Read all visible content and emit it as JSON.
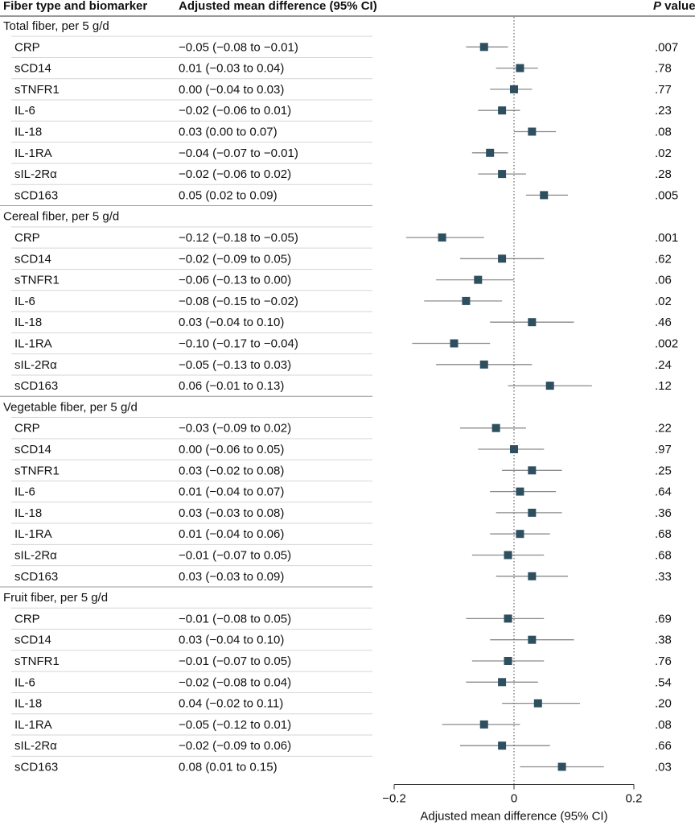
{
  "chart_data": {
    "type": "forest",
    "headers": {
      "group_col": "Fiber type and biomarker",
      "estimate_col": "Adjusted mean difference (95% CI)",
      "p_col_italic": "P",
      "p_col_rest": " value"
    },
    "xlabel": "Adjusted mean difference (95% CI)",
    "xlim": [
      -0.2,
      0.2
    ],
    "xticks": [
      -0.2,
      0,
      0.2
    ],
    "xtick_labels": [
      "-0.2",
      "0",
      "0.2"
    ],
    "reference_line": 0,
    "marker_color": "#2e4f5f",
    "line_color": "#8a8a8a",
    "groups": [
      {
        "label": "Total fiber, per 5 g/d",
        "rows": [
          {
            "biomarker": "CRP",
            "estimate": -0.05,
            "lo": -0.08,
            "hi": -0.01,
            "ci_text": "-0.05 (-0.08 to -0.01)",
            "p": ".007"
          },
          {
            "biomarker": "sCD14",
            "estimate": 0.01,
            "lo": -0.03,
            "hi": 0.04,
            "ci_text": "0.01 (-0.03 to 0.04)",
            "p": ".78"
          },
          {
            "biomarker": "sTNFR1",
            "estimate": 0.0,
            "lo": -0.04,
            "hi": 0.03,
            "ci_text": "0.00 (-0.04 to 0.03)",
            "p": ".77"
          },
          {
            "biomarker": "IL-6",
            "estimate": -0.02,
            "lo": -0.06,
            "hi": 0.01,
            "ci_text": "-0.02 (-0.06 to 0.01)",
            "p": ".23"
          },
          {
            "biomarker": "IL-18",
            "estimate": 0.03,
            "lo": 0.0,
            "hi": 0.07,
            "ci_text": "0.03 (0.00 to 0.07)",
            "p": ".08"
          },
          {
            "biomarker": "IL-1RA",
            "estimate": -0.04,
            "lo": -0.07,
            "hi": -0.01,
            "ci_text": "-0.04 (-0.07 to -0.01)",
            "p": ".02"
          },
          {
            "biomarker": "sIL-2Rα",
            "estimate": -0.02,
            "lo": -0.06,
            "hi": 0.02,
            "ci_text": "-0.02 (-0.06 to 0.02)",
            "p": ".28"
          },
          {
            "biomarker": "sCD163",
            "estimate": 0.05,
            "lo": 0.02,
            "hi": 0.09,
            "ci_text": "0.05 (0.02 to 0.09)",
            "p": ".005"
          }
        ]
      },
      {
        "label": "Cereal fiber, per 5 g/d",
        "rows": [
          {
            "biomarker": "CRP",
            "estimate": -0.12,
            "lo": -0.18,
            "hi": -0.05,
            "ci_text": "-0.12 (-0.18 to -0.05)",
            "p": ".001"
          },
          {
            "biomarker": "sCD14",
            "estimate": -0.02,
            "lo": -0.09,
            "hi": 0.05,
            "ci_text": "-0.02 (-0.09 to 0.05)",
            "p": ".62"
          },
          {
            "biomarker": "sTNFR1",
            "estimate": -0.06,
            "lo": -0.13,
            "hi": 0.0,
            "ci_text": "-0.06 (-0.13 to 0.00)",
            "p": ".06"
          },
          {
            "biomarker": "IL-6",
            "estimate": -0.08,
            "lo": -0.15,
            "hi": -0.02,
            "ci_text": "-0.08 (-0.15 to -0.02)",
            "p": ".02"
          },
          {
            "biomarker": "IL-18",
            "estimate": 0.03,
            "lo": -0.04,
            "hi": 0.1,
            "ci_text": "0.03 (-0.04 to 0.10)",
            "p": ".46"
          },
          {
            "biomarker": "IL-1RA",
            "estimate": -0.1,
            "lo": -0.17,
            "hi": -0.04,
            "ci_text": "-0.10 (-0.17 to -0.04)",
            "p": ".002"
          },
          {
            "biomarker": "sIL-2Rα",
            "estimate": -0.05,
            "lo": -0.13,
            "hi": 0.03,
            "ci_text": "-0.05 (-0.13 to 0.03)",
            "p": ".24"
          },
          {
            "biomarker": "sCD163",
            "estimate": 0.06,
            "lo": -0.01,
            "hi": 0.13,
            "ci_text": "0.06 (-0.01 to 0.13)",
            "p": ".12"
          }
        ]
      },
      {
        "label": "Vegetable fiber, per 5 g/d",
        "rows": [
          {
            "biomarker": "CRP",
            "estimate": -0.03,
            "lo": -0.09,
            "hi": 0.02,
            "ci_text": "-0.03 (-0.09 to 0.02)",
            "p": ".22"
          },
          {
            "biomarker": "sCD14",
            "estimate": 0.0,
            "lo": -0.06,
            "hi": 0.05,
            "ci_text": "0.00 (-0.06 to 0.05)",
            "p": ".97"
          },
          {
            "biomarker": "sTNFR1",
            "estimate": 0.03,
            "lo": -0.02,
            "hi": 0.08,
            "ci_text": "0.03 (-0.02 to 0.08)",
            "p": ".25"
          },
          {
            "biomarker": "IL-6",
            "estimate": 0.01,
            "lo": -0.04,
            "hi": 0.07,
            "ci_text": "0.01 (-0.04 to 0.07)",
            "p": ".64"
          },
          {
            "biomarker": "IL-18",
            "estimate": 0.03,
            "lo": -0.03,
            "hi": 0.08,
            "ci_text": "0.03 (-0.03 to 0.08)",
            "p": ".36"
          },
          {
            "biomarker": "IL-1RA",
            "estimate": 0.01,
            "lo": -0.04,
            "hi": 0.06,
            "ci_text": "0.01 (-0.04 to 0.06)",
            "p": ".68"
          },
          {
            "biomarker": "sIL-2Rα",
            "estimate": -0.01,
            "lo": -0.07,
            "hi": 0.05,
            "ci_text": "-0.01 (-0.07 to 0.05)",
            "p": ".68"
          },
          {
            "biomarker": "sCD163",
            "estimate": 0.03,
            "lo": -0.03,
            "hi": 0.09,
            "ci_text": "0.03 (-0.03 to 0.09)",
            "p": ".33"
          }
        ]
      },
      {
        "label": "Fruit fiber, per 5 g/d",
        "rows": [
          {
            "biomarker": "CRP",
            "estimate": -0.01,
            "lo": -0.08,
            "hi": 0.05,
            "ci_text": "-0.01 (-0.08 to 0.05)",
            "p": ".69"
          },
          {
            "biomarker": "sCD14",
            "estimate": 0.03,
            "lo": -0.04,
            "hi": 0.1,
            "ci_text": "0.03 (-0.04 to 0.10)",
            "p": ".38"
          },
          {
            "biomarker": "sTNFR1",
            "estimate": -0.01,
            "lo": -0.07,
            "hi": 0.05,
            "ci_text": "-0.01 (-0.07 to 0.05)",
            "p": ".76"
          },
          {
            "biomarker": "IL-6",
            "estimate": -0.02,
            "lo": -0.08,
            "hi": 0.04,
            "ci_text": "-0.02 (-0.08 to 0.04)",
            "p": ".54"
          },
          {
            "biomarker": "IL-18",
            "estimate": 0.04,
            "lo": -0.02,
            "hi": 0.11,
            "ci_text": "0.04 (-0.02 to 0.11)",
            "p": ".20"
          },
          {
            "biomarker": "IL-1RA",
            "estimate": -0.05,
            "lo": -0.12,
            "hi": 0.01,
            "ci_text": "-0.05 (-0.12 to 0.01)",
            "p": ".08"
          },
          {
            "biomarker": "sIL-2Rα",
            "estimate": -0.02,
            "lo": -0.09,
            "hi": 0.06,
            "ci_text": "-0.02 (-0.09 to 0.06)",
            "p": ".66"
          },
          {
            "biomarker": "sCD163",
            "estimate": 0.08,
            "lo": 0.01,
            "hi": 0.15,
            "ci_text": "0.08 (0.01 to 0.15)",
            "p": ".03"
          }
        ]
      }
    ]
  }
}
